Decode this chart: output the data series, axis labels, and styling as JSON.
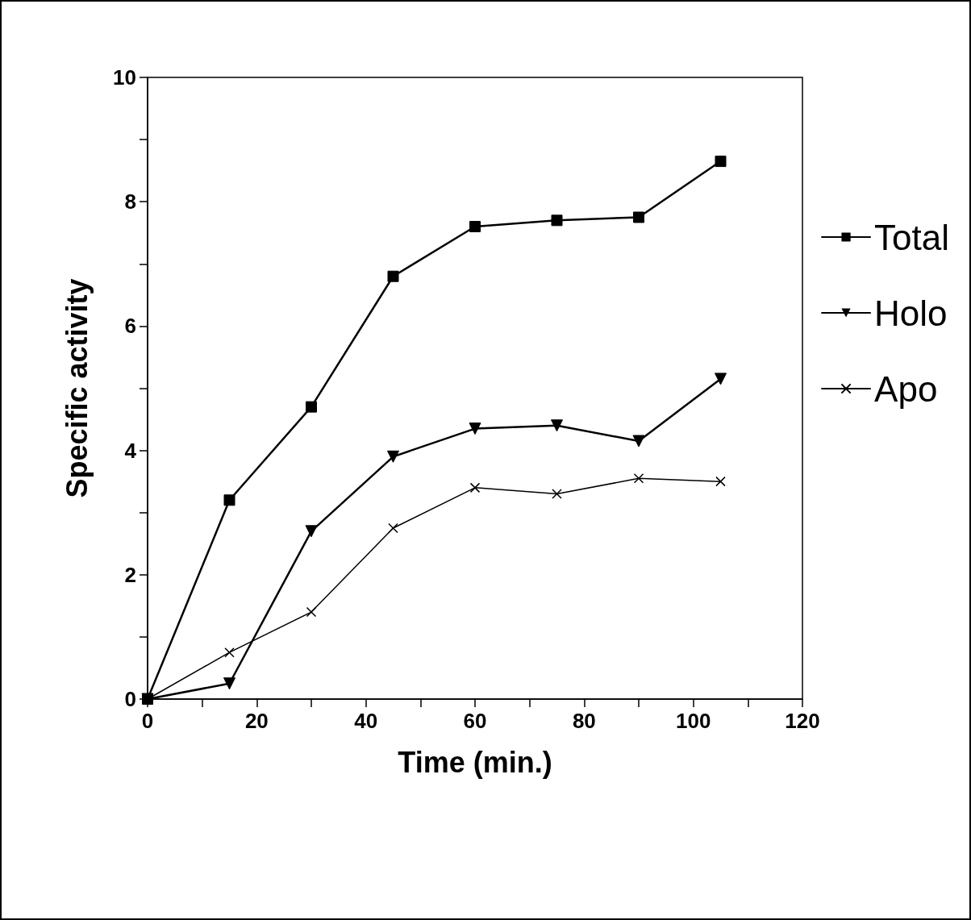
{
  "chart_data": {
    "type": "line",
    "xlabel": "Time (min.)",
    "ylabel": "Specific activity",
    "x": [
      0,
      15,
      30,
      45,
      60,
      75,
      90,
      105
    ],
    "series": [
      {
        "name": "Total",
        "color": "#000000",
        "marker": "square",
        "values": [
          0,
          3.2,
          4.7,
          6.8,
          7.6,
          7.7,
          7.75,
          8.65
        ]
      },
      {
        "name": "Holo",
        "color": "#000000",
        "marker": "triangle",
        "values": [
          0,
          0.25,
          2.7,
          3.9,
          4.35,
          4.4,
          4.15,
          5.15
        ]
      },
      {
        "name": "Apo",
        "color": "#000000",
        "marker": "cross",
        "values": [
          0,
          0.75,
          1.4,
          2.75,
          3.4,
          3.3,
          3.55,
          3.5
        ]
      }
    ],
    "xlim": [
      0,
      120
    ],
    "xticks": [
      0,
      {
        "value": 10,
        "label": null
      },
      20,
      {
        "value": 30,
        "label": null
      },
      40,
      {
        "value": 50,
        "label": null
      },
      60,
      {
        "value": 70,
        "label": null
      },
      80,
      {
        "value": 90,
        "label": null
      },
      100,
      {
        "value": 110,
        "label": null
      },
      120
    ],
    "ylim": [
      0,
      10
    ],
    "yticks": [
      0,
      {
        "value": 1,
        "label": null
      },
      2,
      {
        "value": 3,
        "label": null
      },
      4,
      {
        "value": 5,
        "label": null
      },
      6,
      {
        "value": 7,
        "label": null
      },
      8,
      {
        "value": 9,
        "label": null
      },
      10
    ],
    "grid": false,
    "legend": "right",
    "line_style": "solid"
  }
}
